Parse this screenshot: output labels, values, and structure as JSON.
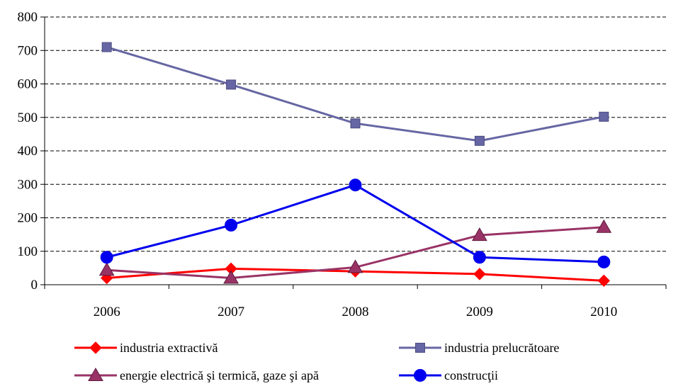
{
  "chart_data": {
    "type": "line",
    "categories": [
      "2006",
      "2007",
      "2008",
      "2009",
      "2010"
    ],
    "ylim": [
      0,
      800
    ],
    "yticks": [
      0,
      100,
      200,
      300,
      400,
      500,
      600,
      700,
      800
    ],
    "grid": "horizontal-dashed",
    "legend_position": "bottom",
    "series": [
      {
        "name": "industria extractivă",
        "values": [
          20,
          48,
          40,
          32,
          12
        ],
        "color": "#ff0000",
        "marker": "diamond"
      },
      {
        "name": "industria prelucrătoare",
        "values": [
          710,
          598,
          482,
          430,
          502
        ],
        "color": "#6666a4",
        "marker": "square"
      },
      {
        "name": "energie electrică şi termică, gaze şi apă",
        "values": [
          44,
          20,
          52,
          148,
          172
        ],
        "color": "#993366",
        "marker": "triangle"
      },
      {
        "name": "construcţii",
        "values": [
          82,
          178,
          298,
          82,
          68
        ],
        "color": "#0000ee",
        "marker": "circle"
      }
    ]
  }
}
